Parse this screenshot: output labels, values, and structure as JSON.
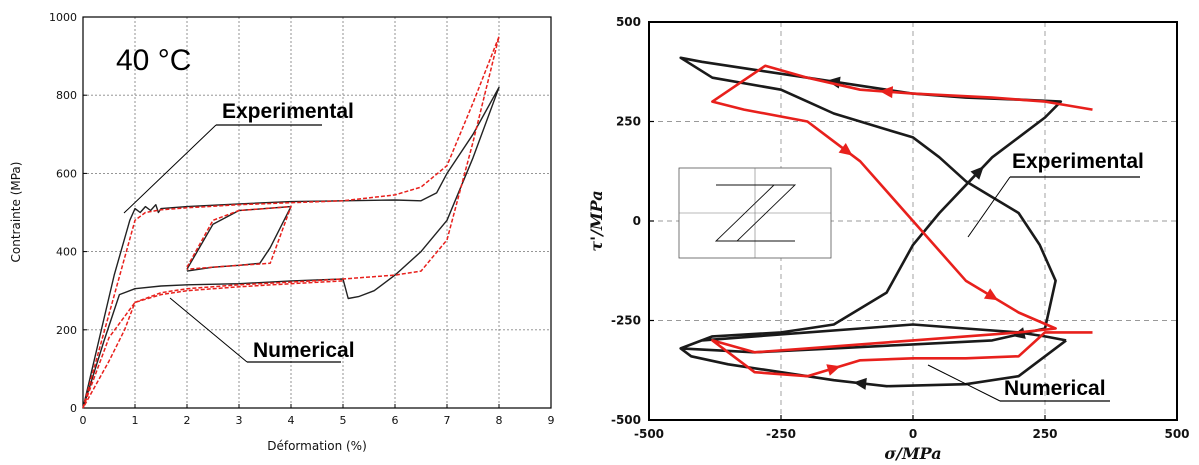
{
  "chart_data": [
    {
      "type": "line",
      "title": "40 °C",
      "xlabel": "Déformation (%)",
      "ylabel": "Contrainte (MPa)",
      "xlim": [
        0,
        9
      ],
      "ylim": [
        0,
        1000
      ],
      "x_ticks": [
        "0",
        "1",
        "2",
        "3",
        "4",
        "5",
        "6",
        "7",
        "8",
        "9"
      ],
      "y_ticks": [
        "0",
        "200",
        "400",
        "600",
        "800",
        "1000"
      ],
      "grid": true,
      "colors": {
        "experimental": "#222222",
        "numerical": "#e8201c"
      },
      "annotations": [
        "Experimental",
        "Numerical"
      ],
      "series": [
        {
          "name": "Experimental",
          "style": "solid",
          "x": [
            0,
            0.3,
            0.6,
            0.9,
            1.0,
            1.1,
            1.2,
            1.3,
            1.4,
            1.45,
            1.5,
            2.0,
            3.0,
            4.0,
            5.0,
            6.0,
            6.5,
            6.8,
            7.0,
            7.5,
            8.0,
            7.5,
            7.0,
            6.5,
            6.0,
            5.6,
            5.3,
            5.1,
            5.0,
            4.0,
            3.0,
            2.0,
            1.5,
            1.0,
            0.7,
            0.4,
            0
          ],
          "y": [
            0,
            170,
            340,
            480,
            510,
            500,
            515,
            505,
            520,
            500,
            510,
            515,
            522,
            528,
            530,
            532,
            530,
            550,
            600,
            700,
            820,
            640,
            480,
            400,
            340,
            300,
            285,
            280,
            330,
            325,
            318,
            315,
            312,
            305,
            290,
            170,
            0
          ]
        },
        {
          "name": "Experimental inner loop",
          "style": "solid",
          "x": [
            2.0,
            2.5,
            3.0,
            3.5,
            4.0,
            3.6,
            3.4,
            3.0,
            2.5,
            2.0
          ],
          "y": [
            355,
            470,
            505,
            510,
            515,
            410,
            370,
            365,
            360,
            350
          ]
        },
        {
          "name": "Numerical",
          "style": "dashed",
          "x": [
            0,
            0.5,
            1.0,
            1.2,
            1.5,
            2.0,
            3.0,
            4.0,
            5.0,
            6.0,
            6.5,
            7.0,
            7.5,
            8.0,
            7.5,
            7.0,
            6.5,
            6.0,
            5.0,
            4.0,
            3.0,
            2.0,
            1.5,
            1.0,
            0.8,
            0.5,
            0
          ],
          "y": [
            0,
            240,
            480,
            500,
            507,
            512,
            520,
            525,
            530,
            545,
            565,
            620,
            780,
            950,
            680,
            430,
            350,
            340,
            330,
            322,
            315,
            305,
            295,
            270,
            200,
            120,
            0
          ]
        },
        {
          "name": "Numerical inner loop",
          "style": "dashed",
          "x": [
            2.0,
            2.5,
            3.0,
            3.5,
            4.0,
            3.6,
            3.0,
            2.5,
            2.0
          ],
          "y": [
            360,
            480,
            505,
            510,
            515,
            370,
            365,
            360,
            355
          ]
        },
        {
          "name": "Numerical elastic",
          "style": "dashed",
          "x": [
            0,
            0.5,
            1.0,
            1.5,
            2.0,
            3.0,
            4.0,
            5.0
          ],
          "y": [
            0,
            180,
            270,
            290,
            300,
            310,
            318,
            325
          ]
        }
      ]
    },
    {
      "type": "line",
      "xlabel": "σ/MPa",
      "ylabel": "τ'/MPa",
      "xlim": [
        -500,
        500
      ],
      "ylim": [
        -500,
        500
      ],
      "x_ticks": [
        "-500",
        "-250",
        "0",
        "250",
        "500"
      ],
      "y_ticks": [
        "500",
        "250",
        "0",
        "-250",
        "-500"
      ],
      "grid": true,
      "colors": {
        "experimental": "#1a1a1a",
        "numerical": "#e8201c"
      },
      "annotations": [
        "Experimental",
        "Numerical"
      ],
      "series": [
        {
          "name": "Experimental",
          "style": "solid",
          "x": [
            290,
            200,
            100,
            -50,
            -150,
            -250,
            -350,
            -420,
            -440,
            -380,
            -250,
            -200,
            -150,
            -50,
            0,
            50,
            100,
            150,
            200,
            250,
            280,
            200,
            100,
            0,
            -100,
            -200,
            -300,
            -350,
            -400,
            -440,
            -380,
            -250,
            -200,
            -150,
            -100,
            -50,
            0,
            50,
            100,
            150,
            200,
            240,
            270,
            250,
            150,
            0,
            -150,
            -300,
            -440,
            -400,
            -300,
            -200,
            -100,
            0,
            100,
            200,
            250,
            290
          ],
          "y": [
            -300,
            -390,
            -410,
            -415,
            -400,
            -380,
            -360,
            -340,
            -320,
            -290,
            -280,
            -270,
            -260,
            -180,
            -60,
            20,
            90,
            160,
            210,
            260,
            300,
            305,
            310,
            320,
            340,
            360,
            380,
            390,
            400,
            410,
            360,
            330,
            300,
            270,
            250,
            230,
            210,
            160,
            100,
            60,
            20,
            -60,
            -150,
            -270,
            -300,
            -310,
            -320,
            -330,
            -320,
            -300,
            -290,
            -280,
            -270,
            -260,
            -270,
            -280,
            -290,
            -300
          ]
        },
        {
          "name": "Numerical",
          "style": "solid",
          "x": [
            340,
            250,
            150,
            0,
            -100,
            -200,
            -280,
            -380,
            -320,
            -200,
            -150,
            -100,
            0,
            100,
            200,
            270,
            200,
            100,
            0,
            -100,
            -200,
            -300,
            -380,
            -300,
            -200,
            -100,
            0,
            100,
            200,
            250,
            340
          ],
          "y": [
            280,
            300,
            310,
            320,
            330,
            360,
            390,
            300,
            280,
            250,
            200,
            150,
            0,
            -150,
            -230,
            -270,
            -280,
            -290,
            -300,
            -310,
            -320,
            -330,
            -300,
            -380,
            -390,
            -350,
            -345,
            -345,
            -340,
            -280,
            -280
          ]
        }
      ]
    }
  ]
}
